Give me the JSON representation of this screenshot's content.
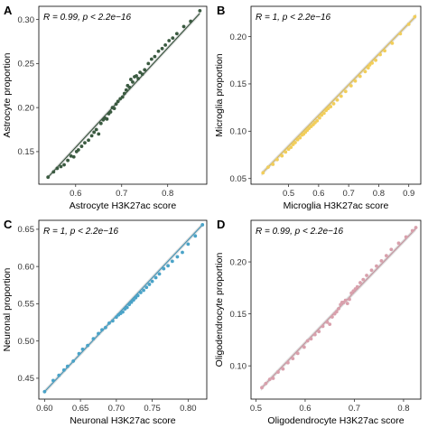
{
  "chart_data": [
    {
      "type": "scatter",
      "panel_label": "A",
      "xlabel": "Astrocyte H3K27ac score",
      "ylabel": "Astrocyte proportion",
      "stat_prefix": "R = 0.99, p < 2.2e−16",
      "xlim": [
        0.52,
        0.885
      ],
      "ylim": [
        0.113,
        0.315
      ],
      "xticks": [
        0.6,
        0.7,
        0.8
      ],
      "xtick_labels": [
        "0.6",
        "0.7",
        "0.8"
      ],
      "yticks": [
        0.15,
        0.2,
        0.25,
        0.3
      ],
      "ytick_labels": [
        "0.15",
        "0.20",
        "0.25",
        "0.30"
      ],
      "color": "#3a5a40",
      "fit": {
        "x": [
          0.54,
          0.87
        ],
        "y": [
          0.121,
          0.307
        ]
      },
      "points": [
        [
          0.54,
          0.121
        ],
        [
          0.552,
          0.127
        ],
        [
          0.56,
          0.131
        ],
        [
          0.568,
          0.133
        ],
        [
          0.575,
          0.135
        ],
        [
          0.583,
          0.14
        ],
        [
          0.59,
          0.145
        ],
        [
          0.596,
          0.144
        ],
        [
          0.602,
          0.15
        ],
        [
          0.606,
          0.152
        ],
        [
          0.613,
          0.156
        ],
        [
          0.62,
          0.16
        ],
        [
          0.628,
          0.163
        ],
        [
          0.635,
          0.168
        ],
        [
          0.64,
          0.172
        ],
        [
          0.645,
          0.175
        ],
        [
          0.65,
          0.17
        ],
        [
          0.655,
          0.182
        ],
        [
          0.66,
          0.186
        ],
        [
          0.664,
          0.188
        ],
        [
          0.668,
          0.187
        ],
        [
          0.672,
          0.193
        ],
        [
          0.676,
          0.195
        ],
        [
          0.68,
          0.2
        ],
        [
          0.684,
          0.199
        ],
        [
          0.688,
          0.204
        ],
        [
          0.692,
          0.207
        ],
        [
          0.697,
          0.21
        ],
        [
          0.702,
          0.212
        ],
        [
          0.706,
          0.216
        ],
        [
          0.71,
          0.22
        ],
        [
          0.713,
          0.225
        ],
        [
          0.717,
          0.223
        ],
        [
          0.72,
          0.232
        ],
        [
          0.724,
          0.229
        ],
        [
          0.728,
          0.235
        ],
        [
          0.732,
          0.236
        ],
        [
          0.736,
          0.233
        ],
        [
          0.74,
          0.24
        ],
        [
          0.745,
          0.238
        ],
        [
          0.75,
          0.243
        ],
        [
          0.758,
          0.25
        ],
        [
          0.765,
          0.255
        ],
        [
          0.772,
          0.258
        ],
        [
          0.78,
          0.264
        ],
        [
          0.788,
          0.267
        ],
        [
          0.795,
          0.271
        ],
        [
          0.803,
          0.276
        ],
        [
          0.811,
          0.279
        ],
        [
          0.82,
          0.284
        ],
        [
          0.835,
          0.292
        ],
        [
          0.85,
          0.298
        ],
        [
          0.87,
          0.31
        ]
      ]
    },
    {
      "type": "scatter",
      "panel_label": "B",
      "xlabel": "Microglia H3K27ac score",
      "ylabel": "Microglia proportion",
      "stat_prefix": "R = 1, p < 2.2e−16",
      "xlim": [
        0.375,
        0.94
      ],
      "ylim": [
        0.044,
        0.232
      ],
      "xticks": [
        0.5,
        0.6,
        0.7,
        0.8,
        0.9
      ],
      "xtick_labels": [
        "0.5",
        "0.6",
        "0.7",
        "0.8",
        "0.9"
      ],
      "yticks": [
        0.05,
        0.1,
        0.15,
        0.2
      ],
      "ytick_labels": [
        "0.05",
        "0.10",
        "0.15",
        "0.20"
      ],
      "color": "#f2ce5a",
      "fit": {
        "x": [
          0.41,
          0.925
        ],
        "y": [
          0.055,
          0.222
        ]
      },
      "points": [
        [
          0.415,
          0.056
        ],
        [
          0.432,
          0.062
        ],
        [
          0.448,
          0.065
        ],
        [
          0.462,
          0.07
        ],
        [
          0.478,
          0.074
        ],
        [
          0.49,
          0.078
        ],
        [
          0.5,
          0.081
        ],
        [
          0.508,
          0.083
        ],
        [
          0.515,
          0.086
        ],
        [
          0.522,
          0.088
        ],
        [
          0.53,
          0.091
        ],
        [
          0.538,
          0.093
        ],
        [
          0.545,
          0.096
        ],
        [
          0.55,
          0.097
        ],
        [
          0.556,
          0.099
        ],
        [
          0.562,
          0.101
        ],
        [
          0.568,
          0.103
        ],
        [
          0.575,
          0.105
        ],
        [
          0.582,
          0.107
        ],
        [
          0.588,
          0.109
        ],
        [
          0.595,
          0.111
        ],
        [
          0.603,
          0.114
        ],
        [
          0.61,
          0.117
        ],
        [
          0.618,
          0.119
        ],
        [
          0.625,
          0.122
        ],
        [
          0.632,
          0.124
        ],
        [
          0.64,
          0.126
        ],
        [
          0.65,
          0.129
        ],
        [
          0.662,
          0.133
        ],
        [
          0.675,
          0.137
        ],
        [
          0.69,
          0.142
        ],
        [
          0.708,
          0.148
        ],
        [
          0.722,
          0.153
        ],
        [
          0.738,
          0.158
        ],
        [
          0.755,
          0.163
        ],
        [
          0.765,
          0.167
        ],
        [
          0.77,
          0.17
        ],
        [
          0.778,
          0.172
        ],
        [
          0.79,
          0.175
        ],
        [
          0.805,
          0.181
        ],
        [
          0.82,
          0.185
        ],
        [
          0.845,
          0.193
        ],
        [
          0.872,
          0.203
        ],
        [
          0.9,
          0.213
        ],
        [
          0.92,
          0.221
        ]
      ]
    },
    {
      "type": "scatter",
      "panel_label": "C",
      "xlabel": "Neuronal H3K27ac score",
      "ylabel": "Neuronal proportion",
      "stat_prefix": "R = 1, p < 2.2e−16",
      "xlim": [
        0.592,
        0.826
      ],
      "ylim": [
        0.422,
        0.662
      ],
      "xticks": [
        0.6,
        0.65,
        0.7,
        0.75,
        0.8
      ],
      "xtick_labels": [
        "0.60",
        "0.65",
        "0.70",
        "0.75",
        "0.80"
      ],
      "yticks": [
        0.45,
        0.5,
        0.55,
        0.6,
        0.65
      ],
      "ytick_labels": [
        "0.45",
        "0.50",
        "0.55",
        "0.60",
        "0.65"
      ],
      "color": "#4aa3c8",
      "fit": {
        "x": [
          0.6,
          0.82
        ],
        "y": [
          0.432,
          0.656
        ]
      },
      "points": [
        [
          0.6,
          0.432
        ],
        [
          0.612,
          0.447
        ],
        [
          0.62,
          0.454
        ],
        [
          0.627,
          0.461
        ],
        [
          0.632,
          0.466
        ],
        [
          0.64,
          0.473
        ],
        [
          0.648,
          0.483
        ],
        [
          0.653,
          0.489
        ],
        [
          0.66,
          0.494
        ],
        [
          0.668,
          0.503
        ],
        [
          0.675,
          0.51
        ],
        [
          0.68,
          0.515
        ],
        [
          0.685,
          0.518
        ],
        [
          0.69,
          0.524
        ],
        [
          0.695,
          0.527
        ],
        [
          0.7,
          0.532
        ],
        [
          0.703,
          0.535
        ],
        [
          0.706,
          0.537
        ],
        [
          0.709,
          0.539
        ],
        [
          0.712,
          0.543
        ],
        [
          0.715,
          0.545
        ],
        [
          0.718,
          0.549
        ],
        [
          0.721,
          0.552
        ],
        [
          0.724,
          0.555
        ],
        [
          0.727,
          0.558
        ],
        [
          0.73,
          0.561
        ],
        [
          0.734,
          0.565
        ],
        [
          0.738,
          0.568
        ],
        [
          0.742,
          0.572
        ],
        [
          0.746,
          0.576
        ],
        [
          0.75,
          0.58
        ],
        [
          0.755,
          0.585
        ],
        [
          0.76,
          0.59
        ],
        [
          0.766,
          0.597
        ],
        [
          0.772,
          0.601
        ],
        [
          0.778,
          0.607
        ],
        [
          0.785,
          0.613
        ],
        [
          0.792,
          0.619
        ],
        [
          0.8,
          0.63
        ],
        [
          0.81,
          0.641
        ],
        [
          0.82,
          0.656
        ]
      ]
    },
    {
      "type": "scatter",
      "panel_label": "D",
      "xlabel": "Oligodendrocyte H3K27ac score",
      "ylabel": "Oligodendrocyte proportion",
      "stat_prefix": "R = 0.99, p < 2.2e−16",
      "xlim": [
        0.49,
        0.835
      ],
      "ylim": [
        0.068,
        0.24
      ],
      "xticks": [
        0.5,
        0.6,
        0.7,
        0.8
      ],
      "xtick_labels": [
        "0.5",
        "0.6",
        "0.7",
        "0.8"
      ],
      "yticks": [
        0.1,
        0.15,
        0.2
      ],
      "ytick_labels": [
        "0.10",
        "0.15",
        "0.20"
      ],
      "color": "#d9a0ac",
      "fit": {
        "x": [
          0.51,
          0.825
        ],
        "y": [
          0.078,
          0.232
        ]
      },
      "points": [
        [
          0.512,
          0.079
        ],
        [
          0.52,
          0.083
        ],
        [
          0.528,
          0.087
        ],
        [
          0.535,
          0.088
        ],
        [
          0.545,
          0.094
        ],
        [
          0.555,
          0.097
        ],
        [
          0.565,
          0.103
        ],
        [
          0.575,
          0.107
        ],
        [
          0.585,
          0.112
        ],
        [
          0.598,
          0.118
        ],
        [
          0.605,
          0.124
        ],
        [
          0.612,
          0.126
        ],
        [
          0.62,
          0.13
        ],
        [
          0.628,
          0.133
        ],
        [
          0.636,
          0.138
        ],
        [
          0.645,
          0.142
        ],
        [
          0.65,
          0.14
        ],
        [
          0.655,
          0.147
        ],
        [
          0.66,
          0.15
        ],
        [
          0.664,
          0.152
        ],
        [
          0.668,
          0.155
        ],
        [
          0.672,
          0.159
        ],
        [
          0.675,
          0.161
        ],
        [
          0.678,
          0.161
        ],
        [
          0.682,
          0.163
        ],
        [
          0.686,
          0.16
        ],
        [
          0.69,
          0.164
        ],
        [
          0.694,
          0.17
        ],
        [
          0.698,
          0.172
        ],
        [
          0.702,
          0.174
        ],
        [
          0.706,
          0.176
        ],
        [
          0.712,
          0.18
        ],
        [
          0.718,
          0.183
        ],
        [
          0.725,
          0.187
        ],
        [
          0.735,
          0.192
        ],
        [
          0.745,
          0.196
        ],
        [
          0.755,
          0.201
        ],
        [
          0.765,
          0.206
        ],
        [
          0.775,
          0.212
        ],
        [
          0.79,
          0.218
        ],
        [
          0.805,
          0.224
        ],
        [
          0.818,
          0.23
        ],
        [
          0.825,
          0.233
        ]
      ]
    }
  ]
}
